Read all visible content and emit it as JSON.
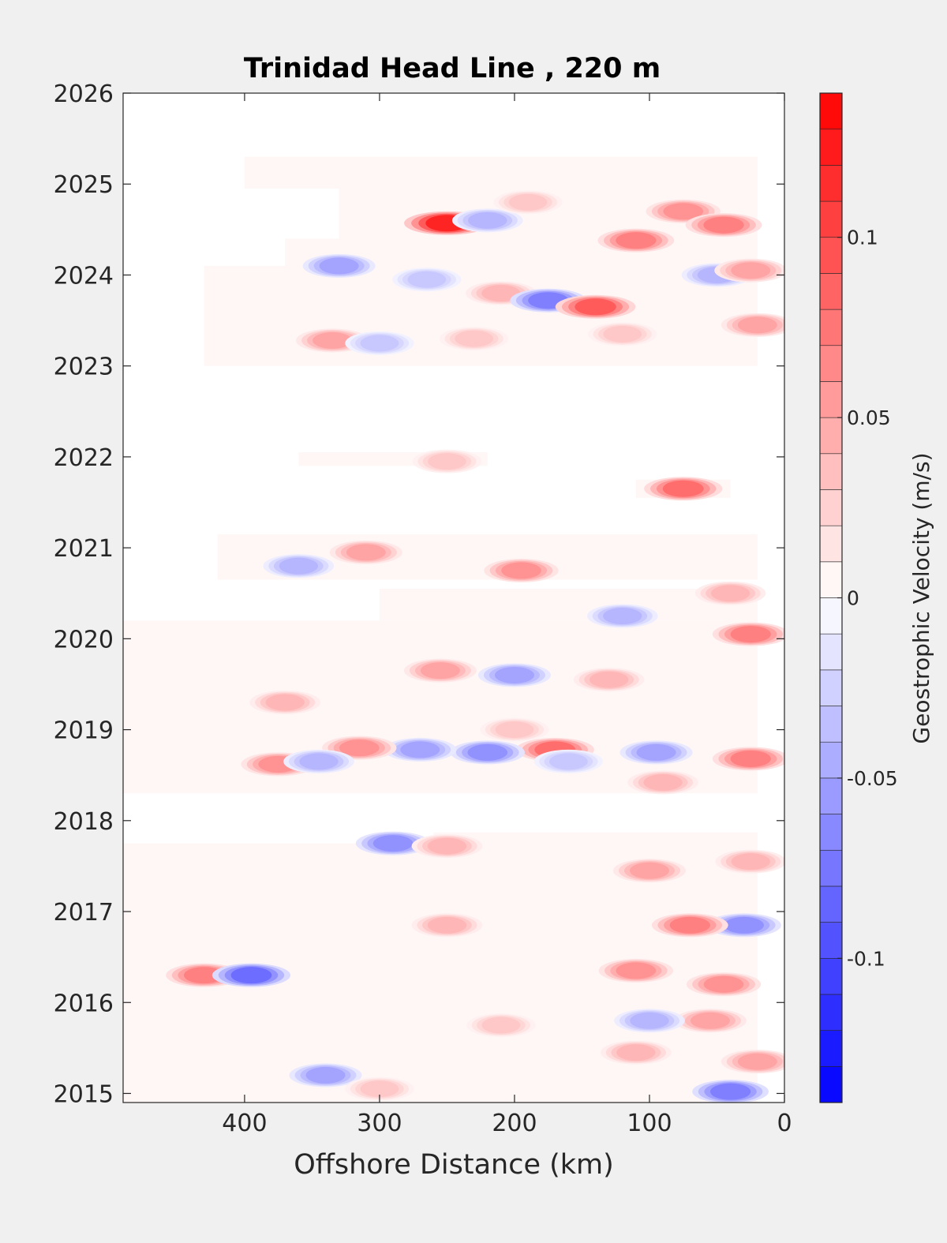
{
  "chart_data": {
    "type": "heatmap",
    "title": "Trinidad Head Line , 220 m",
    "xlabel": "Offshore Distance (km)",
    "ylabel": "",
    "x_reversed": true,
    "xlim": [
      490,
      0
    ],
    "ylim": [
      2014.9,
      2026
    ],
    "xticks": [
      400,
      300,
      200,
      100,
      0
    ],
    "xtick_labels": [
      "400",
      "300",
      "200",
      "100",
      "0"
    ],
    "yticks": [
      2015,
      2016,
      2017,
      2018,
      2019,
      2020,
      2021,
      2022,
      2023,
      2024,
      2025,
      2026
    ],
    "ytick_labels": [
      "2015",
      "2016",
      "2017",
      "2018",
      "2019",
      "2020",
      "2021",
      "2022",
      "2023",
      "2024",
      "2025",
      "2026"
    ],
    "grid": false,
    "colorbar": {
      "label": "Geostrophic Velocity (m/s)",
      "clim": [
        -0.14,
        0.14
      ],
      "levels_step": 0.01,
      "ticks": [
        0.1,
        0.05,
        0,
        -0.05,
        -0.1
      ],
      "tick_labels": [
        "0.1",
        "0.05",
        "0",
        "-0.05",
        "-0.1"
      ],
      "positive_color": "#ff0000",
      "negative_color": "#0000ff",
      "zero_color": "#ffffff"
    },
    "coverage": [
      {
        "t0": 2014.9,
        "t1": 2017.75,
        "x_near": 20,
        "x_far": 490
      },
      {
        "t0": 2017.75,
        "t1": 2017.87,
        "x_near": 20,
        "x_far": 260
      },
      {
        "t0": 2018.3,
        "t1": 2020.2,
        "x_near": 20,
        "x_far": 490
      },
      {
        "t0": 2020.2,
        "t1": 2020.55,
        "x_near": 20,
        "x_far": 300
      },
      {
        "t0": 2020.65,
        "t1": 2021.15,
        "x_near": 20,
        "x_far": 420
      },
      {
        "t0": 2021.55,
        "t1": 2021.75,
        "x_near": 40,
        "x_far": 110
      },
      {
        "t0": 2021.9,
        "t1": 2022.05,
        "x_near": 220,
        "x_far": 360
      },
      {
        "t0": 2023.0,
        "t1": 2024.1,
        "x_near": 20,
        "x_far": 430
      },
      {
        "t0": 2024.1,
        "t1": 2024.4,
        "x_near": 20,
        "x_far": 370
      },
      {
        "t0": 2024.4,
        "t1": 2024.95,
        "x_near": 20,
        "x_far": 330
      },
      {
        "t0": 2024.95,
        "t1": 2025.3,
        "x_near": 20,
        "x_far": 400
      }
    ],
    "features": [
      {
        "x": 250,
        "t": 2024.57,
        "v": 0.12
      },
      {
        "x": 220,
        "t": 2024.6,
        "v": -0.04
      },
      {
        "x": 110,
        "t": 2024.38,
        "v": 0.07
      },
      {
        "x": 75,
        "t": 2024.7,
        "v": 0.06
      },
      {
        "x": 45,
        "t": 2024.55,
        "v": 0.07
      },
      {
        "x": 190,
        "t": 2024.8,
        "v": 0.03
      },
      {
        "x": 330,
        "t": 2024.1,
        "v": -0.05
      },
      {
        "x": 265,
        "t": 2023.95,
        "v": -0.03
      },
      {
        "x": 210,
        "t": 2023.8,
        "v": 0.04
      },
      {
        "x": 175,
        "t": 2023.72,
        "v": -0.07
      },
      {
        "x": 140,
        "t": 2023.65,
        "v": 0.09
      },
      {
        "x": 50,
        "t": 2024.0,
        "v": -0.04
      },
      {
        "x": 25,
        "t": 2024.05,
        "v": 0.05
      },
      {
        "x": 20,
        "t": 2023.45,
        "v": 0.05
      },
      {
        "x": 335,
        "t": 2023.28,
        "v": 0.05
      },
      {
        "x": 300,
        "t": 2023.25,
        "v": -0.03
      },
      {
        "x": 230,
        "t": 2023.3,
        "v": 0.03
      },
      {
        "x": 120,
        "t": 2023.35,
        "v": 0.03
      },
      {
        "x": 75,
        "t": 2021.65,
        "v": 0.08
      },
      {
        "x": 250,
        "t": 2021.95,
        "v": 0.03
      },
      {
        "x": 310,
        "t": 2020.95,
        "v": 0.05
      },
      {
        "x": 195,
        "t": 2020.75,
        "v": 0.06
      },
      {
        "x": 360,
        "t": 2020.8,
        "v": -0.04
      },
      {
        "x": 40,
        "t": 2020.5,
        "v": 0.04
      },
      {
        "x": 25,
        "t": 2020.05,
        "v": 0.07
      },
      {
        "x": 120,
        "t": 2020.25,
        "v": -0.04
      },
      {
        "x": 255,
        "t": 2019.65,
        "v": 0.05
      },
      {
        "x": 200,
        "t": 2019.6,
        "v": -0.05
      },
      {
        "x": 130,
        "t": 2019.55,
        "v": 0.04
      },
      {
        "x": 370,
        "t": 2019.3,
        "v": 0.04
      },
      {
        "x": 200,
        "t": 2019.0,
        "v": 0.03
      },
      {
        "x": 170,
        "t": 2018.78,
        "v": 0.08
      },
      {
        "x": 220,
        "t": 2018.75,
        "v": -0.06
      },
      {
        "x": 270,
        "t": 2018.78,
        "v": -0.05
      },
      {
        "x": 315,
        "t": 2018.8,
        "v": 0.06
      },
      {
        "x": 95,
        "t": 2018.75,
        "v": -0.05
      },
      {
        "x": 25,
        "t": 2018.68,
        "v": 0.07
      },
      {
        "x": 375,
        "t": 2018.62,
        "v": 0.06
      },
      {
        "x": 345,
        "t": 2018.65,
        "v": -0.04
      },
      {
        "x": 160,
        "t": 2018.65,
        "v": -0.03
      },
      {
        "x": 90,
        "t": 2018.42,
        "v": 0.04
      },
      {
        "x": 290,
        "t": 2017.75,
        "v": -0.06
      },
      {
        "x": 250,
        "t": 2017.72,
        "v": 0.04
      },
      {
        "x": 100,
        "t": 2017.45,
        "v": 0.05
      },
      {
        "x": 25,
        "t": 2017.55,
        "v": 0.04
      },
      {
        "x": 30,
        "t": 2016.85,
        "v": -0.06
      },
      {
        "x": 70,
        "t": 2016.85,
        "v": 0.07
      },
      {
        "x": 250,
        "t": 2016.85,
        "v": 0.04
      },
      {
        "x": 430,
        "t": 2016.3,
        "v": 0.07
      },
      {
        "x": 395,
        "t": 2016.3,
        "v": -0.08
      },
      {
        "x": 110,
        "t": 2016.35,
        "v": 0.06
      },
      {
        "x": 45,
        "t": 2016.2,
        "v": 0.06
      },
      {
        "x": 55,
        "t": 2015.8,
        "v": 0.05
      },
      {
        "x": 100,
        "t": 2015.8,
        "v": -0.04
      },
      {
        "x": 210,
        "t": 2015.75,
        "v": 0.03
      },
      {
        "x": 110,
        "t": 2015.45,
        "v": 0.04
      },
      {
        "x": 340,
        "t": 2015.2,
        "v": -0.05
      },
      {
        "x": 40,
        "t": 2015.02,
        "v": -0.07
      },
      {
        "x": 20,
        "t": 2015.35,
        "v": 0.05
      },
      {
        "x": 300,
        "t": 2015.05,
        "v": 0.03
      }
    ]
  }
}
